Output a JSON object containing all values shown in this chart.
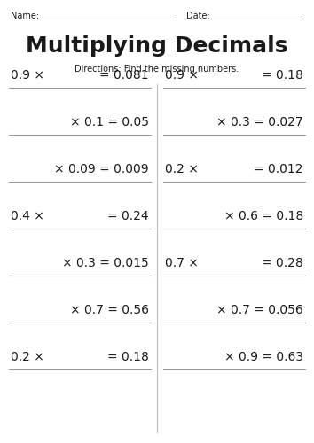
{
  "title": "Multiplying Decimals",
  "subtitle": "Directions: Find the missing numbers.",
  "name_label": "Name:",
  "date_label": "Date:",
  "background_color": "#ffffff",
  "text_color": "#1a1a1a",
  "line_color": "#999999",
  "left_problems": [
    {
      "prefix": "0.9 ×",
      "suffix": "= 0.081"
    },
    {
      "prefix": "",
      "suffix": "× 0.1 = 0.05"
    },
    {
      "prefix": "",
      "suffix": "× 0.09 = 0.009"
    },
    {
      "prefix": "0.4 ×",
      "suffix": "= 0.24"
    },
    {
      "prefix": "",
      "suffix": "× 0.3 = 0.015"
    },
    {
      "prefix": "",
      "suffix": "× 0.7 = 0.56"
    },
    {
      "prefix": "0.2 ×",
      "suffix": "= 0.18"
    }
  ],
  "right_problems": [
    {
      "prefix": "0.9 ×",
      "suffix": "= 0.18"
    },
    {
      "prefix": "",
      "suffix": "× 0.3 = 0.027"
    },
    {
      "prefix": "0.2 ×",
      "suffix": "= 0.012"
    },
    {
      "prefix": "",
      "suffix": "× 0.6 = 0.18"
    },
    {
      "prefix": "0.7 ×",
      "suffix": "= 0.28"
    },
    {
      "prefix": "",
      "suffix": "× 0.7 = 0.056"
    },
    {
      "prefix": "",
      "suffix": "× 0.9 = 0.63"
    }
  ],
  "title_fontsize": 18,
  "subtitle_fontsize": 7,
  "header_fontsize": 7,
  "prob_fontsize": 10,
  "fig_width": 3.54,
  "fig_height": 5.0,
  "dpi": 100
}
